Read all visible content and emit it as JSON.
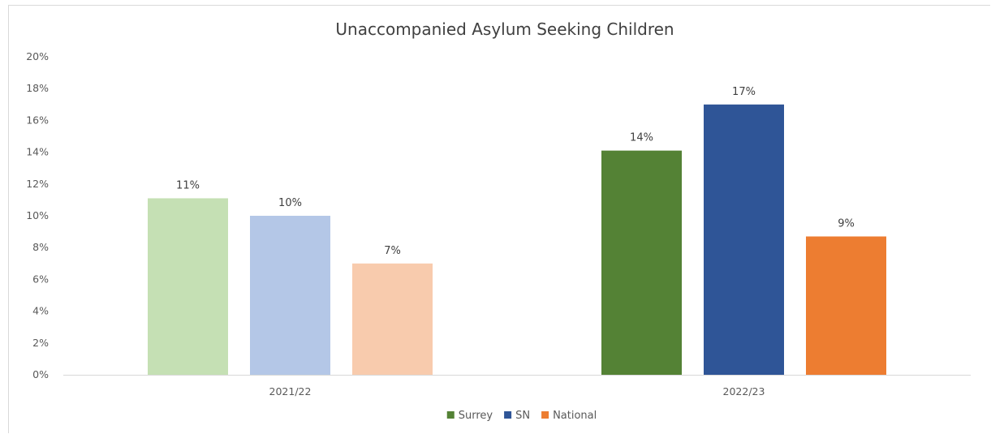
{
  "chart_data": {
    "type": "bar",
    "title": "Unaccompanied Asylum Seeking Children",
    "categories": [
      "2021/22",
      "2022/23"
    ],
    "ylim": [
      0,
      20
    ],
    "ytick_step": 2,
    "y_unit": "%",
    "grid": false,
    "legend_position": "bottom",
    "series": [
      {
        "name": "Surrey",
        "values": [
          11.1,
          14.1
        ],
        "labels": [
          "11%",
          "14%"
        ],
        "colors": [
          "#c5e0b4",
          "#548235"
        ]
      },
      {
        "name": "SN",
        "values": [
          10.0,
          17.0
        ],
        "labels": [
          "10%",
          "17%"
        ],
        "colors": [
          "#b4c7e7",
          "#2f5597"
        ]
      },
      {
        "name": "National",
        "values": [
          7.0,
          8.7
        ],
        "labels": [
          "7%",
          "9%"
        ],
        "colors": [
          "#f8cbad",
          "#ed7d31"
        ]
      }
    ]
  }
}
